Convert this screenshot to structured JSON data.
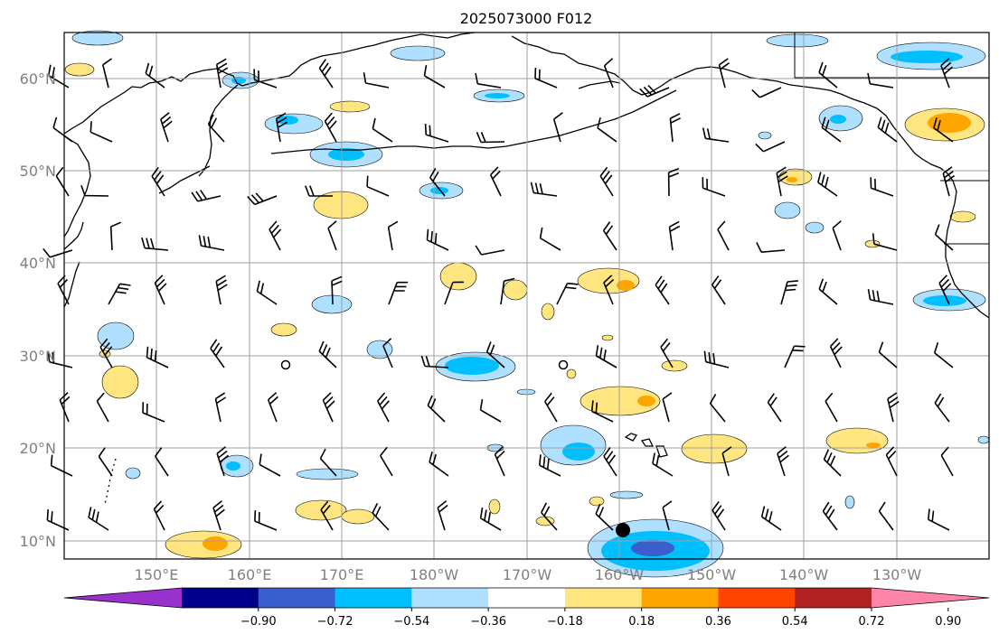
{
  "title": "2025073000 F012",
  "latitude_labels": [
    "60°N",
    "50°N",
    "40°N",
    "30°N",
    "20°N",
    "10°N"
  ],
  "longitude_labels": [
    "150°E",
    "160°E",
    "170°E",
    "180°W",
    "170°W",
    "160°W",
    "150°W",
    "140°W",
    "130°W"
  ],
  "colorbar": {
    "ticks": [
      "−0.90",
      "−0.72",
      "−0.54",
      "−0.36",
      "−0.18",
      "0.18",
      "0.36",
      "0.54",
      "0.72",
      "0.90"
    ],
    "colors": [
      "#9932cc",
      "#00008b",
      "#3a5fcd",
      "#00bfff",
      "#b0e0ff",
      "#ffffff",
      "#ffe680",
      "#ffa500",
      "#ff4500",
      "#b22222",
      "#ff85a8"
    ]
  },
  "colors": {
    "light_blue": "#b0e0ff",
    "blue": "#00bfff",
    "mid_blue": "#3a5fcd",
    "purple": "#6a3fcf",
    "light_yellow": "#ffe680",
    "orange": "#ffa500",
    "grid": "#a0a0a0",
    "coast": "#000000"
  },
  "marker": {
    "name": "storm-center",
    "lon": 199.5,
    "lat": 11.2
  }
}
